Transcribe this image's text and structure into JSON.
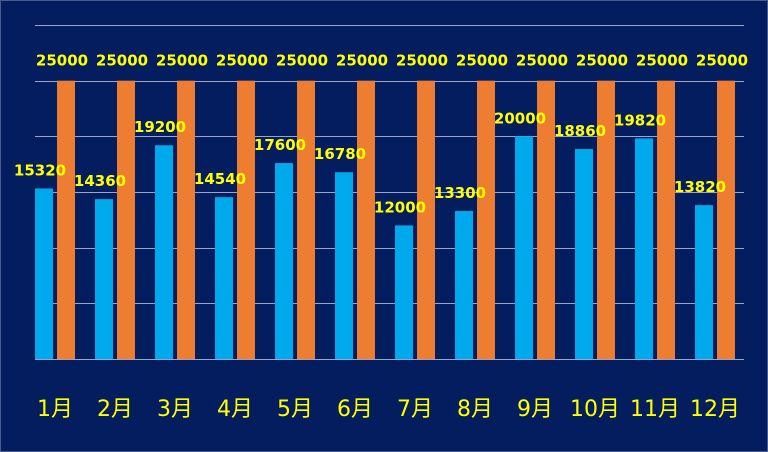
{
  "chart_data": {
    "type": "bar",
    "categories": [
      "1月",
      "2月",
      "3月",
      "4月",
      "5月",
      "6月",
      "7月",
      "8月",
      "9月",
      "10月",
      "11月",
      "12月"
    ],
    "series": [
      {
        "values": [
          15320,
          14360,
          19200,
          14540,
          17600,
          16780,
          12000,
          13300,
          20000,
          18860,
          19820,
          13820
        ],
        "color": "#00a8ec"
      },
      {
        "values": [
          25000,
          25000,
          25000,
          25000,
          25000,
          25000,
          25000,
          25000,
          25000,
          25000,
          25000,
          25000
        ],
        "color": "#ed7d31"
      }
    ],
    "title": "",
    "xlabel": "",
    "ylabel": "",
    "ylim": [
      0,
      30000
    ],
    "y_gridline_step": 5000,
    "grid": true,
    "legend": "none",
    "colors": {
      "background": "#031d5e",
      "gridline": "#9aa6c8",
      "label_text": "#ffff00"
    }
  }
}
